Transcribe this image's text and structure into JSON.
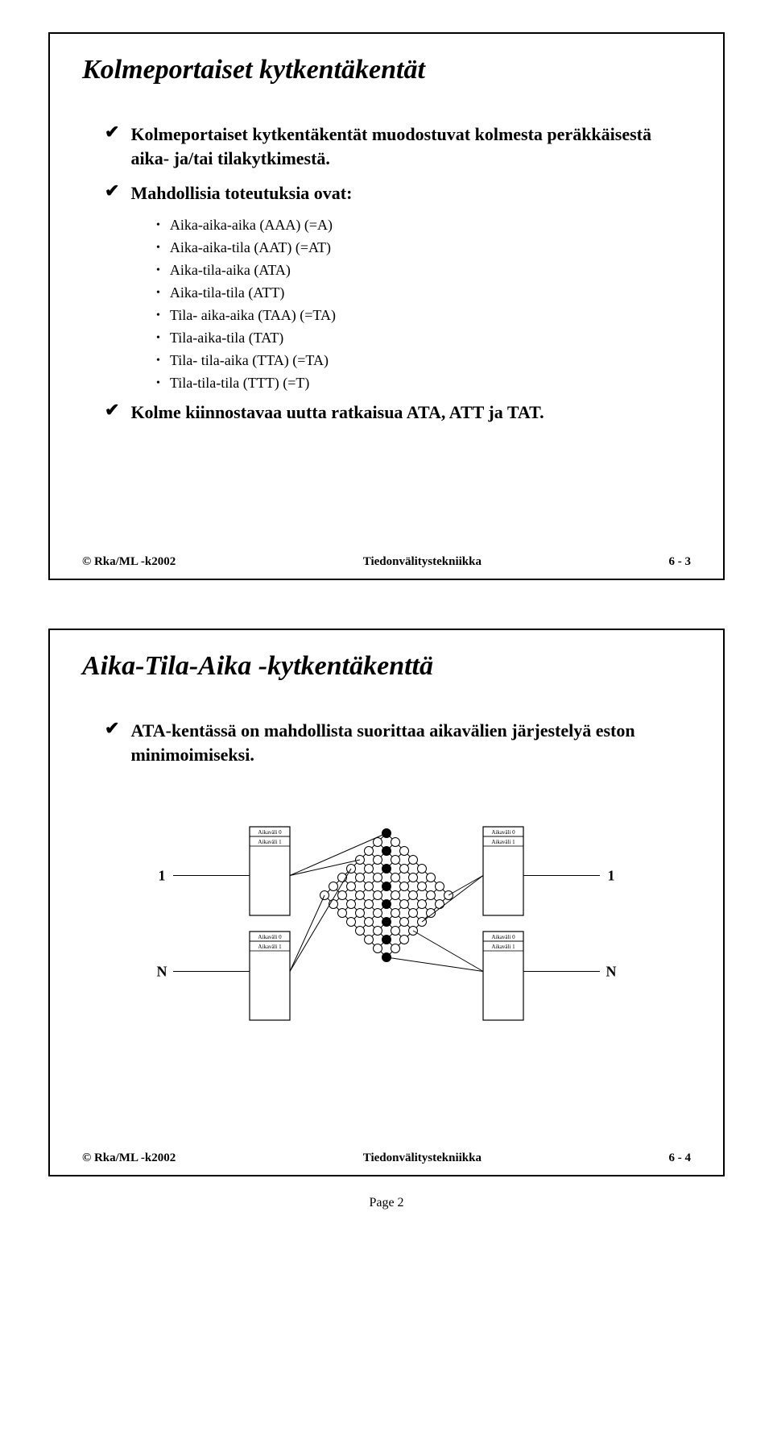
{
  "slide1": {
    "title": "Kolmeportaiset kytkentäkentät",
    "p1": "Kolmeportaiset kytkentäkentät muodostuvat kolmesta peräkkäisestä aika- ja/tai tilakytkimestä.",
    "p2": "Mahdollisia toteutuksia ovat:",
    "items": [
      "Aika-aika-aika (AAA) (=A)",
      "Aika-aika-tila (AAT) (=AT)",
      "Aika-tila-aika (ATA)",
      "Aika-tila-tila (ATT)",
      "Tila- aika-aika (TAA) (=TA)",
      "Tila-aika-tila (TAT)",
      "Tila- tila-aika (TTA) (=TA)",
      "Tila-tila-tila (TTT) (=T)"
    ],
    "p3": "Kolme kiinnostavaa uutta ratkaisua ATA, ATT ja TAT.",
    "footer_left": "© Rka/ML -k2002",
    "footer_center": "Tiedonvälitystekniikka",
    "footer_right": "6 - 3"
  },
  "slide2": {
    "title": "Aika-Tila-Aika -kytkentäkenttä",
    "p1": "ATA-kentässä on mahdollista suorittaa aikavälien järjestelyä eston minimoimiseksi.",
    "footer_left": "© Rka/ML -k2002",
    "footer_center": "Tiedonvälitystekniikka",
    "footer_right": "6 - 4",
    "box_label_top": "Aikaväli 0",
    "box_label_bottom": "Aikaväli 1",
    "side_top": "1",
    "side_bottom": "N"
  },
  "page_number": "Page 2",
  "style": {
    "text_color": "#000000",
    "background": "#ffffff",
    "border_color": "#000000",
    "diagram_open_fill": "#ffffff",
    "diagram_closed_fill": "#000000",
    "diagram_stroke": "#000000"
  }
}
